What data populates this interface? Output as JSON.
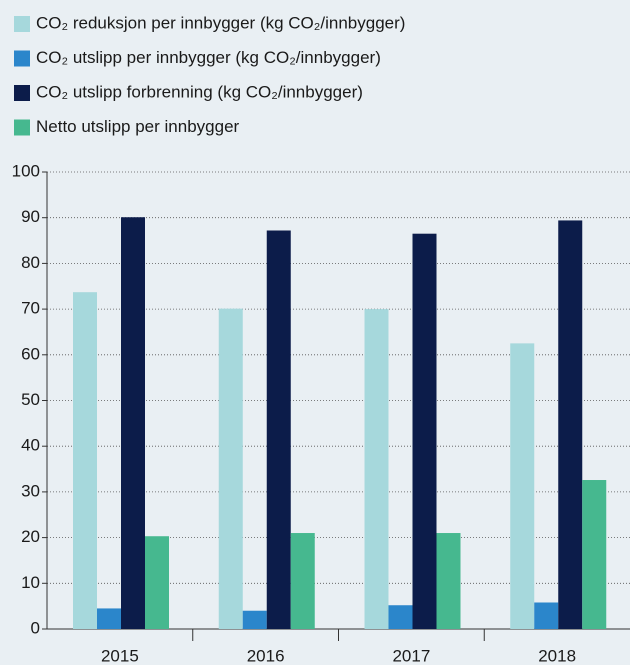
{
  "chart_data": {
    "type": "bar",
    "categories": [
      "2015",
      "2016",
      "2017",
      "2018"
    ],
    "series": [
      {
        "name": "CO₂ reduksjon per innbygger (kg CO₂/innbygger)",
        "color": "#a6d8dc",
        "values": [
          73.7,
          70.1,
          70.0,
          62.5
        ]
      },
      {
        "name": "CO₂ utslipp per innbygger (kg CO₂/innbygger)",
        "color": "#2b86cb",
        "values": [
          4.5,
          4.0,
          5.2,
          5.8
        ]
      },
      {
        "name": "CO₂ utslipp forbrenning (kg CO₂/innbygger)",
        "color": "#0c1c4a",
        "values": [
          90.1,
          87.2,
          86.5,
          89.4
        ]
      },
      {
        "name": "Netto utslipp per innbygger",
        "color": "#46b88f",
        "values": [
          20.3,
          21.0,
          21.0,
          32.6
        ]
      }
    ],
    "ylim": [
      0,
      100
    ],
    "yticks": [
      0,
      10,
      20,
      30,
      40,
      50,
      60,
      70,
      80,
      90,
      100
    ],
    "grid": true
  }
}
